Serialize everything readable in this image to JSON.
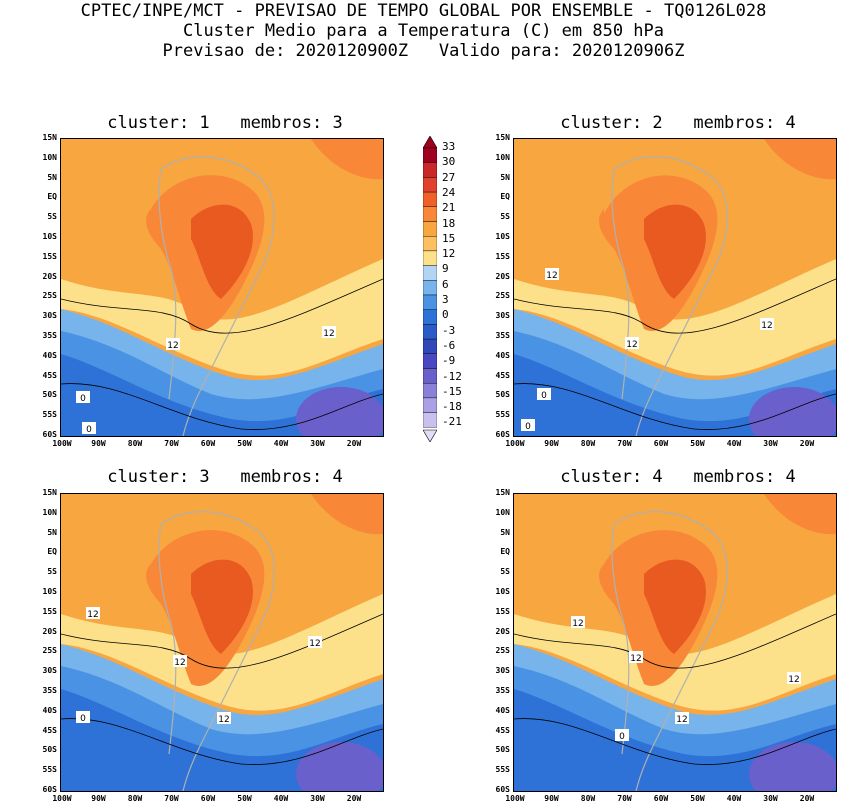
{
  "header": {
    "line1": "CPTEC/INPE/MCT - PREVISAO DE TEMPO GLOBAL POR ENSEMBLE - TQ0126L028",
    "line2": "Cluster Medio para a Temperatura (C) em 850 hPa",
    "line3": "Previsao de: 2020120900Z   Valido para: 2020120906Z"
  },
  "panels": [
    {
      "title": "cluster: 1   membros: 3",
      "contour_labels": [
        "12",
        "12",
        "0",
        "0"
      ]
    },
    {
      "title": "cluster: 2   membros: 4",
      "contour_labels": [
        "12",
        "12",
        "12",
        "0",
        "0"
      ]
    },
    {
      "title": "cluster: 3   membros: 4",
      "contour_labels": [
        "12",
        "12",
        "12",
        "12",
        "0",
        "0"
      ]
    },
    {
      "title": "cluster: 4   membros: 4",
      "contour_labels": [
        "12",
        "12",
        "12",
        "12",
        "0"
      ]
    }
  ],
  "lat_labels": [
    "15N",
    "10N",
    "5N",
    "EQ",
    "5S",
    "10S",
    "15S",
    "20S",
    "25S",
    "30S",
    "35S",
    "40S",
    "45S",
    "50S",
    "55S",
    "60S"
  ],
  "lon_labels": [
    "100W",
    "90W",
    "80W",
    "70W",
    "60W",
    "50W",
    "40W",
    "30W",
    "20W"
  ],
  "colorbar": {
    "labels": [
      "33",
      "30",
      "27",
      "24",
      "21",
      "18",
      "15",
      "12",
      "9",
      "6",
      "3",
      "0",
      "-3",
      "-6",
      "-9",
      "-12",
      "-15",
      "-18",
      "-21"
    ],
    "colors": [
      "#a00020",
      "#c82828",
      "#e0402c",
      "#f0602a",
      "#f88838",
      "#f8a640",
      "#fcc060",
      "#fce08a",
      "#b4d4f4",
      "#78b4ec",
      "#4a92e4",
      "#2e72d8",
      "#2a5cc8",
      "#3048b8",
      "#4a48c0",
      "#6a60cc",
      "#8a80d8",
      "#aaa0e4",
      "#cac0f0",
      "#e2dcf8"
    ]
  },
  "colors": {
    "hot": "#e85a20",
    "warm": "#f88838",
    "mid": "#f8a640",
    "pale": "#fce08a",
    "cold1": "#78b4ec",
    "cold2": "#4a92e4",
    "cold3": "#2e72d8",
    "cold4": "#6a60cc",
    "border": "#b0b0b0"
  }
}
